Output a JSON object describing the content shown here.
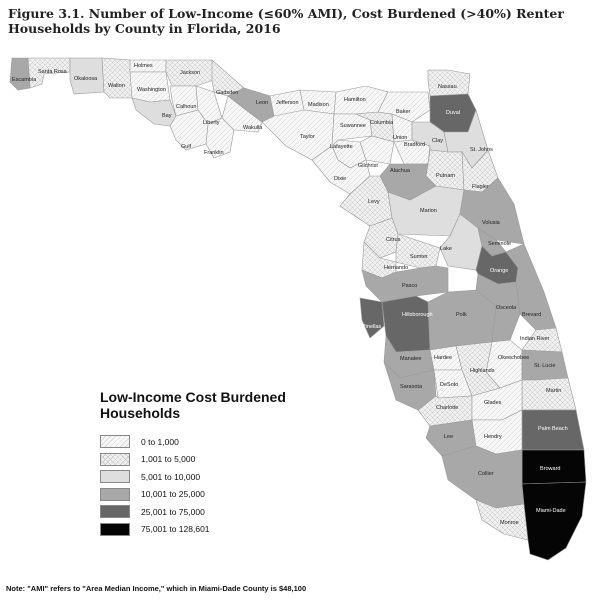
{
  "title": "Figure 3.1. Number of Low-Income (≤60% AMI), Cost Burdened (>40%) Renter Households by County in Florida, 2016",
  "legend": {
    "title": "Low-Income Cost Burdened Households",
    "items": [
      {
        "label": "0 to 1,000",
        "class": "c0"
      },
      {
        "label": "1,001 to 5,000",
        "class": "c1"
      },
      {
        "label": "5,001 to 10,000",
        "class": "c2"
      },
      {
        "label": "10,001 to 25,000",
        "class": "c3"
      },
      {
        "label": "25,001 to 75,000",
        "class": "c4"
      },
      {
        "label": "75,001 to 128,601",
        "class": "c5"
      }
    ]
  },
  "colors": {
    "c0": "#f5f5f5",
    "c1": "#eeeeee",
    "c2": "#dedede",
    "c3": "#a8a8a8",
    "c4": "#676767",
    "c5": "#050505",
    "border": "#9a9a9a"
  },
  "counties": [
    {
      "name": "Escambia",
      "class": "c3"
    },
    {
      "name": "Santa Rosa",
      "class": "c1"
    },
    {
      "name": "Okaloosa",
      "class": "c2"
    },
    {
      "name": "Walton",
      "class": "c1"
    },
    {
      "name": "Holmes",
      "class": "c0"
    },
    {
      "name": "Washington",
      "class": "c0"
    },
    {
      "name": "Jackson",
      "class": "c1"
    },
    {
      "name": "Bay",
      "class": "c2"
    },
    {
      "name": "Calhoun",
      "class": "c0"
    },
    {
      "name": "Gadsden",
      "class": "c1"
    },
    {
      "name": "Liberty",
      "class": "c0"
    },
    {
      "name": "Gulf",
      "class": "c0"
    },
    {
      "name": "Franklin",
      "class": "c0"
    },
    {
      "name": "Wakulla",
      "class": "c0"
    },
    {
      "name": "Leon",
      "class": "c3"
    },
    {
      "name": "Jefferson",
      "class": "c0"
    },
    {
      "name": "Madison",
      "class": "c0"
    },
    {
      "name": "Taylor",
      "class": "c0"
    },
    {
      "name": "Hamilton",
      "class": "c0"
    },
    {
      "name": "Suwannee",
      "class": "c0"
    },
    {
      "name": "Lafayette",
      "class": "c0"
    },
    {
      "name": "Columbia",
      "class": "c1"
    },
    {
      "name": "Baker",
      "class": "c0"
    },
    {
      "name": "Union",
      "class": "c0"
    },
    {
      "name": "Bradford",
      "class": "c0"
    },
    {
      "name": "Nassau",
      "class": "c1"
    },
    {
      "name": "Duval",
      "class": "c4"
    },
    {
      "name": "Clay",
      "class": "c2"
    },
    {
      "name": "St. Johns",
      "class": "c2"
    },
    {
      "name": "Putnam",
      "class": "c1"
    },
    {
      "name": "Flagler",
      "class": "c1"
    },
    {
      "name": "Gilchrist",
      "class": "c0"
    },
    {
      "name": "Dixie",
      "class": "c0"
    },
    {
      "name": "Alachua",
      "class": "c3"
    },
    {
      "name": "Levy",
      "class": "c1"
    },
    {
      "name": "Marion",
      "class": "c2"
    },
    {
      "name": "Volusia",
      "class": "c3"
    },
    {
      "name": "Citrus",
      "class": "c1"
    },
    {
      "name": "Lake",
      "class": "c2"
    },
    {
      "name": "Seminole",
      "class": "c3"
    },
    {
      "name": "Sumter",
      "class": "c1"
    },
    {
      "name": "Orange",
      "class": "c4"
    },
    {
      "name": "Hernando",
      "class": "c1"
    },
    {
      "name": "Pasco",
      "class": "c3"
    },
    {
      "name": "Pinellas",
      "class": "c4"
    },
    {
      "name": "Hillsborough",
      "class": "c4"
    },
    {
      "name": "Polk",
      "class": "c3"
    },
    {
      "name": "Osceola",
      "class": "c3"
    },
    {
      "name": "Brevard",
      "class": "c3"
    },
    {
      "name": "Indian River",
      "class": "c1"
    },
    {
      "name": "Manatee",
      "class": "c3"
    },
    {
      "name": "Hardee",
      "class": "c0"
    },
    {
      "name": "Okeechobee",
      "class": "c0"
    },
    {
      "name": "St. Lucie",
      "class": "c3"
    },
    {
      "name": "Highlands",
      "class": "c1"
    },
    {
      "name": "Sarasota",
      "class": "c3"
    },
    {
      "name": "DeSoto",
      "class": "c0"
    },
    {
      "name": "Martin",
      "class": "c1"
    },
    {
      "name": "Charlotte",
      "class": "c1"
    },
    {
      "name": "Glades",
      "class": "c0"
    },
    {
      "name": "Palm Beach",
      "class": "c4"
    },
    {
      "name": "Lee",
      "class": "c3"
    },
    {
      "name": "Hendry",
      "class": "c0"
    },
    {
      "name": "Broward",
      "class": "c5"
    },
    {
      "name": "Collier",
      "class": "c3"
    },
    {
      "name": "Monroe",
      "class": "c1"
    },
    {
      "name": "Miami-Dade",
      "class": "c5"
    }
  ],
  "note": "Note: \"AMI\" refers to \"Area Median Income,\" which in Miami-Dade County is $48,100"
}
